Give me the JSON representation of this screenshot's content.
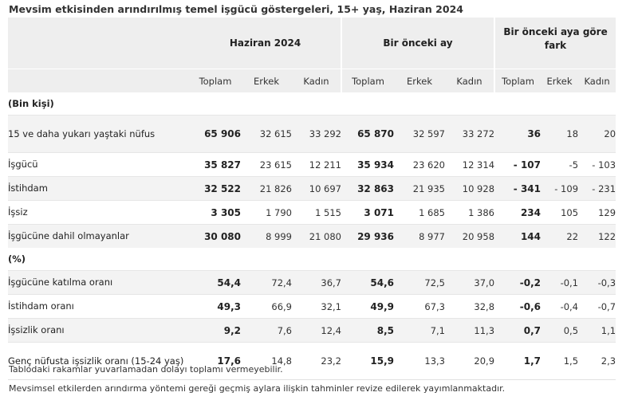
{
  "title": "Mevsim etkisinden arındırılmış temel işgücü göstergeleri, 15+ yaş, Haziran 2024",
  "groups": [
    "Haziran 2024",
    "Bir önceki ay",
    "Bir önceki aya göre fark"
  ],
  "subheaders": [
    "Toplam",
    "Erkek",
    "Kadın",
    "Toplam",
    "Erkek",
    "Kadın",
    "Toplam",
    "Erkek",
    "Kadın"
  ],
  "section1": "(Bin kişi)",
  "section2": "(%)",
  "rows1": [
    {
      "label": "15 ve daha yukarı yaştaki nüfus",
      "values": [
        "65 906",
        "32 615",
        "33 292",
        "65 870",
        "32 597",
        "33 272",
        "36",
        "18",
        "20"
      ]
    },
    {
      "label": "İşgücü",
      "values": [
        "35 827",
        "23 615",
        "12 211",
        "35 934",
        "23 620",
        "12 314",
        "- 107",
        "-5",
        "- 103"
      ]
    },
    {
      "label": "İstihdam",
      "values": [
        "32 522",
        "21 826",
        "10 697",
        "32 863",
        "21 935",
        "10 928",
        "- 341",
        "- 109",
        "- 231"
      ]
    },
    {
      "label": "İşsiz",
      "values": [
        "3 305",
        "1 790",
        "1 515",
        "3 071",
        "1 685",
        "1 386",
        "234",
        "105",
        "129"
      ]
    },
    {
      "label": "İşgücüne dahil olmayanlar",
      "values": [
        "30 080",
        "8 999",
        "21 080",
        "29 936",
        "8 977",
        "20 958",
        "144",
        "22",
        "122"
      ]
    }
  ],
  "rows2": [
    {
      "label": "İşgücüne katılma oranı",
      "values": [
        "54,4",
        "72,4",
        "36,7",
        "54,6",
        "72,5",
        "37,0",
        "-0,2",
        "-0,1",
        "-0,3"
      ]
    },
    {
      "label": "İstihdam oranı",
      "values": [
        "49,3",
        "66,9",
        "32,1",
        "49,9",
        "67,3",
        "32,8",
        "-0,6",
        "-0,4",
        "-0,7"
      ]
    },
    {
      "label": "İşsizlik oranı",
      "values": [
        "9,2",
        "7,6",
        "12,4",
        "8,5",
        "7,1",
        "11,3",
        "0,7",
        "0,5",
        "1,1"
      ]
    },
    {
      "label": "Genç nüfusta işsizlik oranı (15-24 yaş)",
      "values": [
        "17,6",
        "14,8",
        "23,2",
        "15,9",
        "13,3",
        "20,9",
        "1,7",
        "1,5",
        "2,3"
      ]
    }
  ],
  "footnotes": [
    "Tablodaki rakamlar yuvarlamadan dolayı toplamı vermeyebilir.",
    "Mevsimsel etkilerden arındırma yöntemi gereği geçmiş aylara ilişkin tahminler revize edilerek yayımlanmaktadır."
  ]
}
